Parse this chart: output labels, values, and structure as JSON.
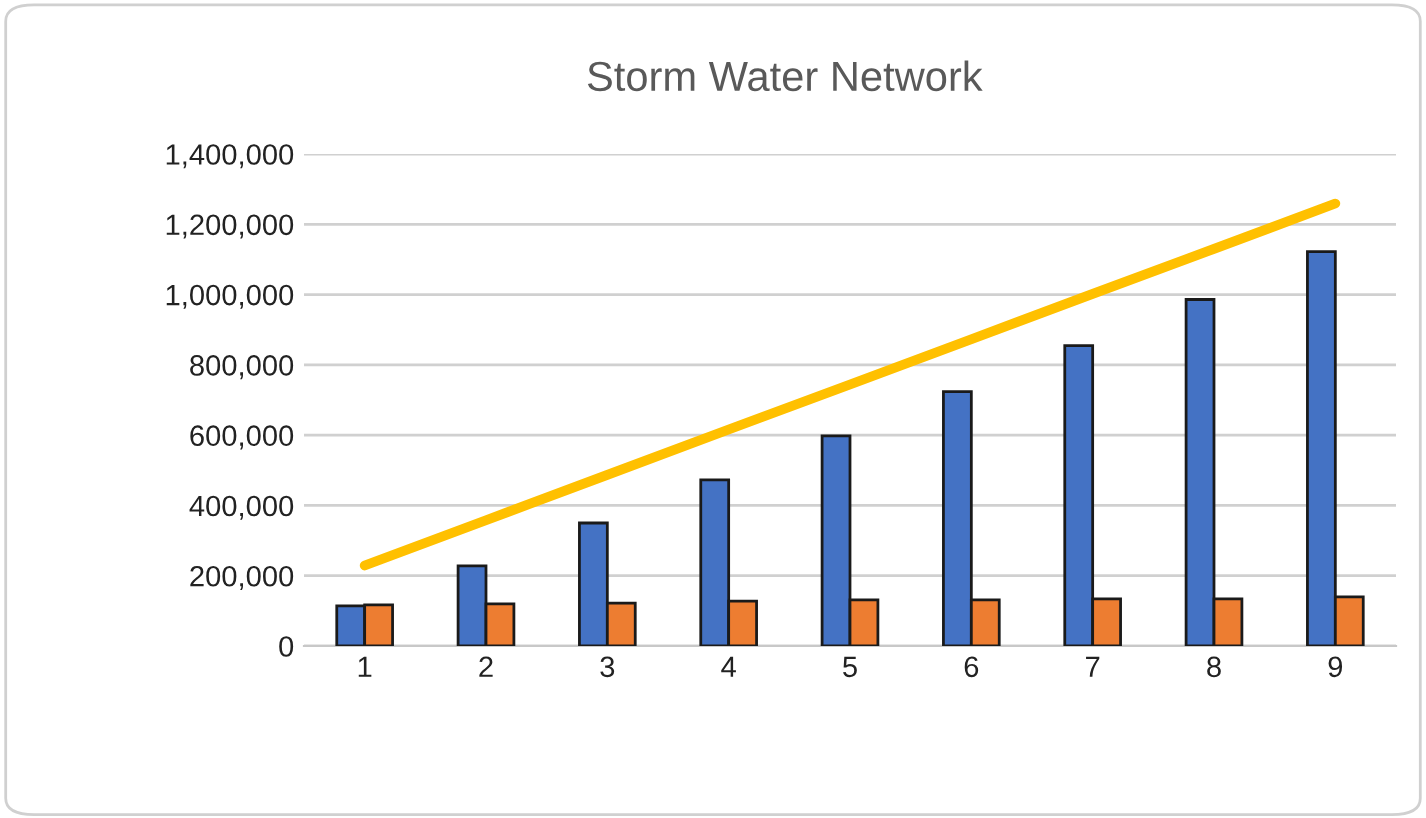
{
  "chart_data": {
    "type": "bar",
    "title": "Storm Water Network",
    "categories": [
      "1",
      "2",
      "3",
      "4",
      "5",
      "6",
      "7",
      "8",
      "9"
    ],
    "series": [
      {
        "color": "#4472c4",
        "values": [
          114000,
          228000,
          350000,
          473000,
          598000,
          724000,
          855000,
          986000,
          1122000
        ]
      },
      {
        "color": "#ed7d31",
        "values": [
          117000,
          120000,
          122000,
          128000,
          131000,
          131000,
          134000,
          134000,
          140000
        ]
      },
      {
        "type": "line",
        "color": "#ffc000",
        "values": [
          229000,
          358000,
          487000,
          616000,
          744000,
          873000,
          1002000,
          1130000,
          1259000
        ]
      }
    ],
    "ylim": [
      0,
      1400000
    ],
    "yticks": [
      {
        "value": 0,
        "label": "0"
      },
      {
        "value": 200000,
        "label": "200,000"
      },
      {
        "value": 400000,
        "label": "400,000"
      },
      {
        "value": 600000,
        "label": "600,000"
      },
      {
        "value": 800000,
        "label": "800,000"
      },
      {
        "value": 1000000,
        "label": "1,000,000"
      },
      {
        "value": 1200000,
        "label": "1,200,000"
      },
      {
        "value": 1400000,
        "label": "1,400,000"
      }
    ],
    "grid": "y"
  }
}
